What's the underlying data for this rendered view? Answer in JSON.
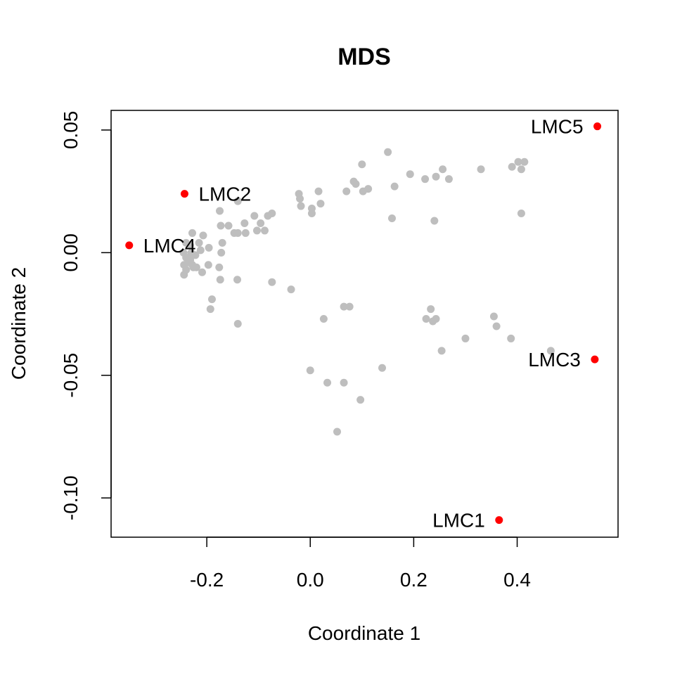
{
  "chart_data": {
    "type": "scatter",
    "title": "MDS",
    "xlabel": "Coordinate 1",
    "ylabel": "Coordinate 2",
    "xlim": [
      -0.385,
      0.595
    ],
    "ylim": [
      -0.116,
      0.058
    ],
    "xticks": [
      -0.2,
      0.0,
      0.2,
      0.4
    ],
    "xtick_labels": [
      "-0.2",
      "0.0",
      "0.2",
      "0.4"
    ],
    "yticks": [
      -0.1,
      -0.05,
      0.0,
      0.05
    ],
    "ytick_labels": [
      "-0.10",
      "-0.05",
      "0.00",
      "0.05"
    ],
    "grid": false,
    "background_color": "#bebebe",
    "highlight_color": "#ff0000",
    "highlighted": [
      {
        "label": "LMC1",
        "x": 0.365,
        "y": -0.109,
        "label_side": "left"
      },
      {
        "label": "LMC2",
        "x": -0.243,
        "y": 0.024,
        "label_side": "right"
      },
      {
        "label": "LMC3",
        "x": 0.55,
        "y": -0.0435,
        "label_side": "left"
      },
      {
        "label": "LMC4",
        "x": -0.35,
        "y": 0.003,
        "label_side": "right"
      },
      {
        "label": "LMC5",
        "x": 0.555,
        "y": 0.0515,
        "label_side": "left"
      }
    ],
    "background_points": [
      [
        0.15,
        0.041
      ],
      [
        0.1,
        0.036
      ],
      [
        0.193,
        0.032
      ],
      [
        0.256,
        0.034
      ],
      [
        0.268,
        0.03
      ],
      [
        0.33,
        0.034
      ],
      [
        0.39,
        0.035
      ],
      [
        0.402,
        0.037
      ],
      [
        0.414,
        0.037
      ],
      [
        0.408,
        0.034
      ],
      [
        0.222,
        0.03
      ],
      [
        0.243,
        0.031
      ],
      [
        0.163,
        0.027
      ],
      [
        0.084,
        0.029
      ],
      [
        0.088,
        0.028
      ],
      [
        0.07,
        0.025
      ],
      [
        0.102,
        0.025
      ],
      [
        0.112,
        0.026
      ],
      [
        0.016,
        0.025
      ],
      [
        -0.022,
        0.024
      ],
      [
        -0.02,
        0.022
      ],
      [
        -0.14,
        0.021
      ],
      [
        0.003,
        0.018
      ],
      [
        0.02,
        0.02
      ],
      [
        -0.018,
        0.019
      ],
      [
        0.003,
        0.016
      ],
      [
        -0.175,
        0.017
      ],
      [
        -0.108,
        0.015
      ],
      [
        -0.074,
        0.016
      ],
      [
        -0.082,
        0.015
      ],
      [
        -0.173,
        0.011
      ],
      [
        -0.158,
        0.011
      ],
      [
        -0.127,
        0.012
      ],
      [
        -0.096,
        0.012
      ],
      [
        -0.103,
        0.009
      ],
      [
        -0.088,
        0.009
      ],
      [
        -0.147,
        0.008
      ],
      [
        -0.14,
        0.008
      ],
      [
        -0.125,
        0.008
      ],
      [
        0.158,
        0.014
      ],
      [
        0.408,
        0.016
      ],
      [
        0.24,
        0.013
      ],
      [
        -0.228,
        0.008
      ],
      [
        -0.207,
        0.007
      ],
      [
        -0.215,
        0.004
      ],
      [
        -0.17,
        0.004
      ],
      [
        -0.24,
        0.004
      ],
      [
        -0.232,
        0.003
      ],
      [
        -0.196,
        0.002
      ],
      [
        -0.212,
        0.001
      ],
      [
        -0.245,
        0.0
      ],
      [
        -0.23,
        0.0
      ],
      [
        -0.172,
        0.0
      ],
      [
        -0.24,
        -0.002
      ],
      [
        -0.222,
        -0.001
      ],
      [
        -0.232,
        -0.003
      ],
      [
        -0.236,
        -0.004
      ],
      [
        -0.244,
        -0.005
      ],
      [
        -0.228,
        -0.005
      ],
      [
        -0.22,
        -0.006
      ],
      [
        -0.197,
        -0.005
      ],
      [
        -0.176,
        -0.006
      ],
      [
        -0.24,
        -0.007
      ],
      [
        -0.226,
        -0.006
      ],
      [
        -0.209,
        -0.008
      ],
      [
        -0.244,
        -0.009
      ],
      [
        -0.174,
        -0.011
      ],
      [
        -0.141,
        -0.011
      ],
      [
        -0.074,
        -0.012
      ],
      [
        -0.037,
        -0.015
      ],
      [
        -0.19,
        -0.019
      ],
      [
        -0.193,
        -0.023
      ],
      [
        -0.14,
        -0.029
      ],
      [
        0.065,
        -0.022
      ],
      [
        0.076,
        -0.022
      ],
      [
        0.026,
        -0.027
      ],
      [
        0.233,
        -0.023
      ],
      [
        0.224,
        -0.027
      ],
      [
        0.237,
        -0.028
      ],
      [
        0.243,
        -0.027
      ],
      [
        0.355,
        -0.026
      ],
      [
        0.36,
        -0.03
      ],
      [
        0.3,
        -0.035
      ],
      [
        0.388,
        -0.035
      ],
      [
        0.254,
        -0.04
      ],
      [
        0.465,
        -0.04
      ],
      [
        0.0,
        -0.048
      ],
      [
        0.033,
        -0.053
      ],
      [
        0.065,
        -0.053
      ],
      [
        0.139,
        -0.047
      ],
      [
        0.097,
        -0.06
      ],
      [
        0.052,
        -0.073
      ]
    ]
  }
}
